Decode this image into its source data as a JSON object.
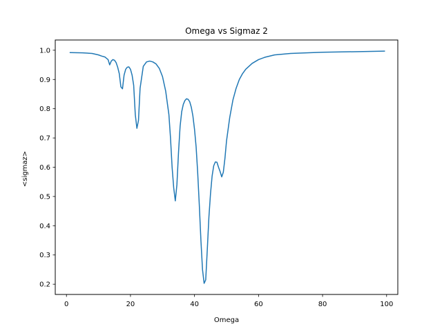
{
  "chart_data": {
    "type": "line",
    "title": "Omega vs Sigmaz 2",
    "xlabel": "Omega",
    "ylabel": "<sigmaz>",
    "xlim": [
      -3.5,
      103.5
    ],
    "ylim": [
      0.165,
      1.035
    ],
    "xticks": [
      0,
      20,
      40,
      60,
      80,
      100
    ],
    "yticks": [
      0.2,
      0.3,
      0.4,
      0.5,
      0.6,
      0.7,
      0.8,
      0.9,
      1.0
    ],
    "xtick_labels": [
      "0",
      "20",
      "40",
      "60",
      "80",
      "100"
    ],
    "ytick_labels": [
      "0.2",
      "0.3",
      "0.4",
      "0.5",
      "0.6",
      "0.7",
      "0.8",
      "0.9",
      "1.0"
    ],
    "grid": false,
    "line_color": "#1f77b4",
    "series": [
      {
        "x": [
          1,
          5,
          8,
          10,
          11,
          12,
          13,
          13.5,
          14,
          14.5,
          15,
          15.5,
          16,
          16.5,
          17,
          17.5,
          18,
          18.5,
          19,
          19.5,
          20,
          20.5,
          21,
          21.5,
          22,
          22.5,
          23,
          24,
          25,
          26,
          27,
          28,
          29,
          30,
          31,
          32,
          32.5,
          33,
          33.5,
          34,
          34.5,
          35,
          35.5,
          36,
          36.5,
          37,
          37.5,
          38,
          38.5,
          39,
          39.5,
          40,
          40.5,
          41,
          41.5,
          42,
          42.5,
          43,
          43.5,
          44,
          44.5,
          45,
          45.5,
          46,
          46.5,
          47,
          47.5,
          48,
          48.5,
          49,
          49.5,
          50,
          51,
          52,
          53,
          54,
          55,
          56,
          58,
          60,
          62,
          65,
          70,
          75,
          80,
          90,
          99.5
        ],
        "y": [
          0.992,
          0.991,
          0.989,
          0.984,
          0.98,
          0.977,
          0.968,
          0.95,
          0.963,
          0.968,
          0.966,
          0.958,
          0.942,
          0.92,
          0.875,
          0.868,
          0.915,
          0.935,
          0.942,
          0.943,
          0.935,
          0.915,
          0.88,
          0.78,
          0.733,
          0.76,
          0.87,
          0.945,
          0.96,
          0.963,
          0.96,
          0.953,
          0.938,
          0.91,
          0.86,
          0.78,
          0.7,
          0.6,
          0.53,
          0.485,
          0.54,
          0.65,
          0.74,
          0.79,
          0.815,
          0.828,
          0.834,
          0.832,
          0.824,
          0.805,
          0.775,
          0.73,
          0.67,
          0.58,
          0.47,
          0.35,
          0.25,
          0.203,
          0.215,
          0.32,
          0.43,
          0.51,
          0.57,
          0.605,
          0.618,
          0.617,
          0.6,
          0.585,
          0.567,
          0.583,
          0.63,
          0.69,
          0.77,
          0.83,
          0.87,
          0.9,
          0.92,
          0.935,
          0.955,
          0.968,
          0.976,
          0.984,
          0.989,
          0.991,
          0.993,
          0.995,
          0.997
        ]
      }
    ]
  }
}
